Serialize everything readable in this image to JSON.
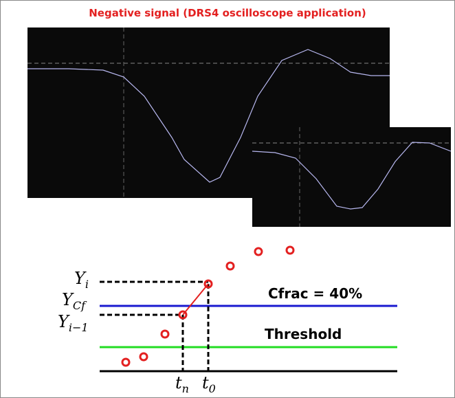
{
  "title": "Negative signal (DRS4 oscilloscope application)",
  "diagram": {
    "y_labels": [
      {
        "base": "Y",
        "sub": "i"
      },
      {
        "base": "Y",
        "sub": "Cf"
      },
      {
        "base": "Y",
        "sub": "i−1"
      }
    ],
    "cfrac": "Cfrac = 40%",
    "threshold": "Threshold",
    "t_labels": [
      {
        "base": "t",
        "sub": "n"
      },
      {
        "base": "t",
        "sub": "0"
      }
    ]
  }
}
